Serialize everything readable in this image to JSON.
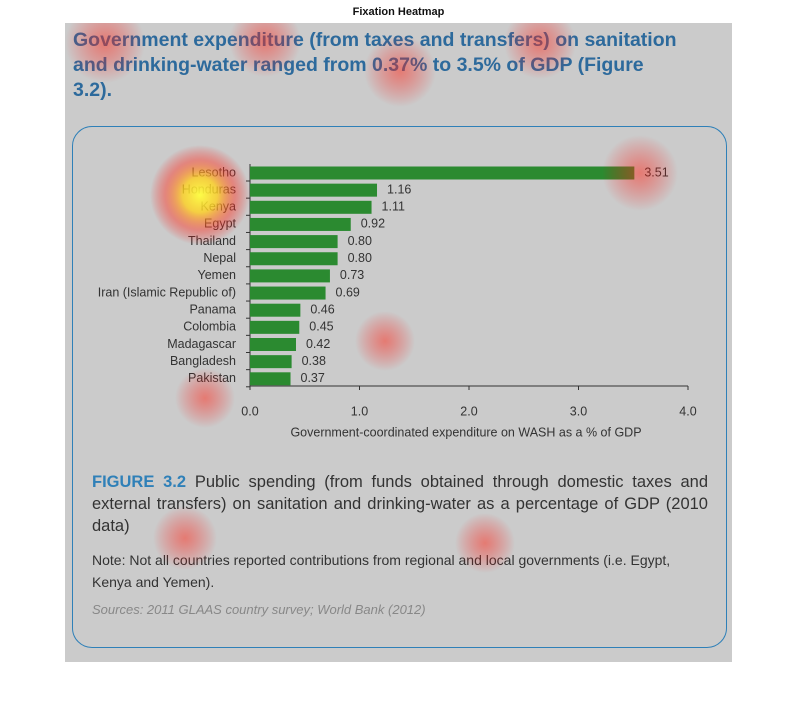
{
  "page_title": "Fixation Heatmap",
  "headline": "Government expenditure (from taxes and transfers) on sanitation and drinking-water ranged from 0.37% to 3.5% of GDP (Figure 3.2).",
  "chart_data": {
    "type": "bar",
    "orientation": "horizontal",
    "categories": [
      "Lesotho",
      "Honduras",
      "Kenya",
      "Egypt",
      "Thailand",
      "Nepal",
      "Yemen",
      "Iran (Islamic Republic of)",
      "Panama",
      "Colombia",
      "Madagascar",
      "Bangladesh",
      "Pakistan"
    ],
    "values": [
      3.51,
      1.16,
      1.11,
      0.92,
      0.8,
      0.8,
      0.73,
      0.69,
      0.46,
      0.45,
      0.42,
      0.38,
      0.37
    ],
    "value_labels": [
      "3.51",
      "1.16",
      "1.11",
      "0.92",
      "0.80",
      "0.80",
      "0.73",
      "0.69",
      "0.46",
      "0.45",
      "0.42",
      "0.38",
      "0.37"
    ],
    "color": "#2b8a30",
    "xlim": [
      0,
      4
    ],
    "xticks": [
      {
        "value": 0,
        "label": "0.0"
      },
      {
        "value": 1,
        "label": "1.0"
      },
      {
        "value": 2,
        "label": "2.0"
      },
      {
        "value": 3,
        "label": "3.0"
      },
      {
        "value": 4,
        "label": "4.0"
      }
    ],
    "xlabel": "Government-coordinated expenditure on WASH as a % of GDP"
  },
  "caption": {
    "figure_label": "FIGURE 3.2",
    "text": "Public spending (from funds obtained through domestic taxes and external transfers) on sanitation and drinking-water as a percentage of GDP (2010 data)",
    "note": "Note: Not all countries reported contributions from regional and local governments (i.e. Egypt, Kenya and Yemen).",
    "sources": "Sources: 2011 GLAAS country survey; World Bank (2012)"
  }
}
